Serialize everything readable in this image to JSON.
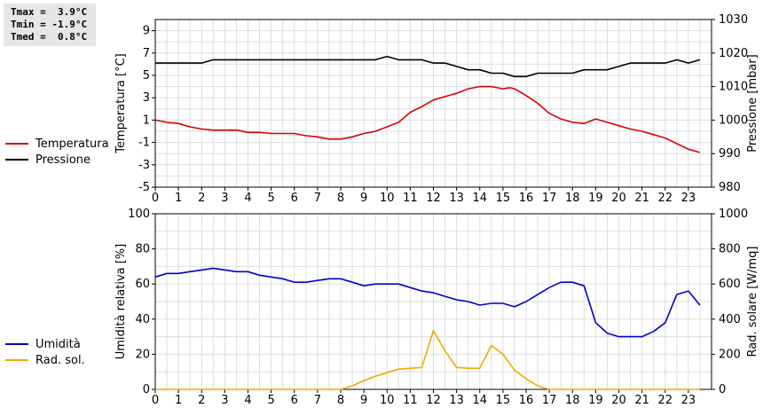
{
  "stats": {
    "tmax": "Tmax =  3.9°C",
    "tmin": "Tmin = -1.9°C",
    "tmed": "Tmed =  0.8°C"
  },
  "chart_data": [
    {
      "type": "line",
      "x_ticks": [
        "0",
        "1",
        "2",
        "3",
        "4",
        "5",
        "6",
        "7",
        "8",
        "9",
        "10",
        "11",
        "12",
        "13",
        "14",
        "15",
        "16",
        "17",
        "18",
        "19",
        "20",
        "21",
        "22",
        "23"
      ],
      "ylabel_left": "Temperatura [°C]",
      "ylabel_right": "Pressione [mbar]",
      "ylim_left": [
        -5,
        10
      ],
      "ylim_right": [
        980,
        1030
      ],
      "yticks_left": [
        "-5",
        "-3",
        "-1",
        "1",
        "3",
        "5",
        "7",
        "9"
      ],
      "yticks_right": [
        "980",
        "990",
        "1000",
        "1010",
        "1020",
        "1030"
      ],
      "grid": true,
      "series": [
        {
          "name": "Temperatura",
          "axis": "left",
          "color": "#dd0000",
          "x": [
            0,
            0.5,
            1,
            1.5,
            2,
            2.5,
            3,
            3.5,
            4,
            4.5,
            5,
            5.5,
            6,
            6.5,
            7,
            7.5,
            8,
            8.5,
            9,
            9.5,
            10,
            10.5,
            11,
            11.5,
            12,
            12.5,
            13,
            13.5,
            14,
            14.5,
            15,
            15.3,
            15.5,
            16,
            16.5,
            17,
            17.5,
            18,
            18.5,
            19,
            19.5,
            20,
            20.5,
            21,
            21.5,
            22,
            22.5,
            23,
            23.5
          ],
          "y": [
            1,
            0.8,
            0.7,
            0.4,
            0.2,
            0.1,
            0.1,
            0.1,
            -0.1,
            -0.1,
            -0.2,
            -0.2,
            -0.2,
            -0.4,
            -0.5,
            -0.7,
            -0.7,
            -0.5,
            -0.2,
            0,
            0.4,
            0.8,
            1.7,
            2.2,
            2.8,
            3.1,
            3.4,
            3.8,
            4.0,
            4.0,
            3.8,
            3.9,
            3.8,
            3.2,
            2.5,
            1.6,
            1.1,
            0.8,
            0.7,
            1.1,
            0.8,
            0.5,
            0.2,
            0,
            -0.3,
            -0.6,
            -1.1,
            -1.6,
            -1.9
          ]
        },
        {
          "name": "Pressione",
          "axis": "right",
          "color": "#000000",
          "x": [
            0,
            1,
            2,
            2.5,
            3,
            4,
            5,
            6,
            7,
            8,
            9,
            9.5,
            10,
            10.5,
            11,
            11.5,
            12,
            12.5,
            13,
            13.5,
            14,
            14.5,
            15,
            15.5,
            16,
            16.5,
            17,
            17.5,
            18,
            18.5,
            19,
            19.5,
            20,
            20.5,
            21,
            21.5,
            22,
            22.5,
            23,
            23.5
          ],
          "y": [
            1017,
            1017,
            1017,
            1018,
            1018,
            1018,
            1018,
            1018,
            1018,
            1018,
            1018,
            1018,
            1019,
            1018,
            1018,
            1018,
            1017,
            1017,
            1016,
            1015,
            1015,
            1014,
            1014,
            1013,
            1013,
            1014,
            1014,
            1014,
            1014,
            1015,
            1015,
            1015,
            1016,
            1017,
            1017,
            1017,
            1017,
            1018,
            1017,
            1018
          ]
        }
      ]
    },
    {
      "type": "line",
      "x_ticks": [
        "0",
        "1",
        "2",
        "3",
        "4",
        "5",
        "6",
        "7",
        "8",
        "9",
        "10",
        "11",
        "12",
        "13",
        "14",
        "15",
        "16",
        "17",
        "18",
        "19",
        "20",
        "21",
        "22",
        "23"
      ],
      "ylabel_left": "Umidità relativa [%]",
      "ylabel_right": "Rad. solare [W/mq]",
      "ylim_left": [
        0,
        100
      ],
      "ylim_right": [
        0,
        1000
      ],
      "yticks_left": [
        "0",
        "20",
        "40",
        "60",
        "80",
        "100"
      ],
      "yticks_right": [
        "0",
        "200",
        "400",
        "600",
        "800",
        "1000"
      ],
      "grid": true,
      "series": [
        {
          "name": "Umidità",
          "axis": "left",
          "color": "#0000cc",
          "x": [
            0,
            0.5,
            1,
            1.5,
            2,
            2.5,
            3,
            3.5,
            4,
            4.5,
            5,
            5.5,
            6,
            6.5,
            7,
            7.5,
            8,
            8.5,
            9,
            9.5,
            10,
            10.5,
            11,
            11.5,
            12,
            12.5,
            13,
            13.5,
            14,
            14.5,
            15,
            15.5,
            16,
            16.5,
            17,
            17.5,
            18,
            18.5,
            19,
            19.5,
            20,
            20.5,
            21,
            21.5,
            22,
            22.5,
            23,
            23.5
          ],
          "y": [
            64,
            66,
            66,
            67,
            68,
            69,
            68,
            67,
            67,
            65,
            64,
            63,
            61,
            61,
            62,
            63,
            63,
            61,
            59,
            60,
            60,
            60,
            58,
            56,
            55,
            53,
            51,
            50,
            48,
            49,
            49,
            47,
            50,
            54,
            58,
            61,
            61,
            59,
            38,
            32,
            30,
            30,
            30,
            33,
            38,
            54,
            56,
            48
          ]
        },
        {
          "name": "Rad. sol.",
          "axis": "right",
          "color": "#eeaa00",
          "x": [
            0,
            1,
            2,
            3,
            4,
            5,
            6,
            7,
            8,
            8.5,
            9,
            9.5,
            10,
            10.5,
            11,
            11.5,
            12,
            12.5,
            13,
            13.5,
            14,
            14.5,
            14.8,
            15,
            15.5,
            16,
            16.5,
            17,
            18,
            19,
            20,
            21,
            22,
            23,
            23.5
          ],
          "y": [
            0,
            0,
            0,
            0,
            0,
            0,
            0,
            0,
            0,
            20,
            50,
            75,
            95,
            115,
            120,
            125,
            335,
            220,
            125,
            120,
            120,
            250,
            220,
            200,
            110,
            60,
            20,
            0,
            0,
            0,
            0,
            0,
            0,
            0,
            0
          ]
        }
      ]
    }
  ]
}
